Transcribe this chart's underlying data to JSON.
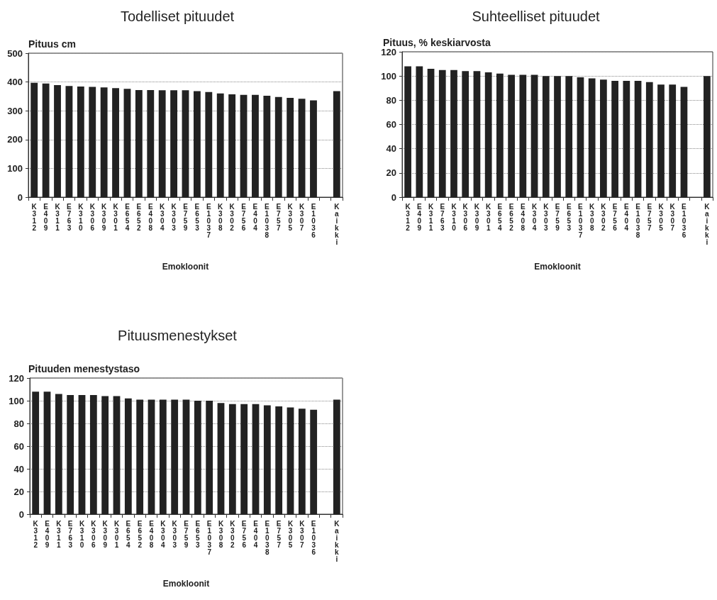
{
  "chart_data": [
    {
      "type": "bar",
      "title": "Todelliset pituudet",
      "ylabel": "Pituus cm",
      "xlabel": "Emokloonit",
      "categories": [
        "K312",
        "E409",
        "K311",
        "E763",
        "K310",
        "K306",
        "K309",
        "K301",
        "E654",
        "E652",
        "E408",
        "K304",
        "K303",
        "E759",
        "E653",
        "E1037",
        "K308",
        "K302",
        "E756",
        "E404",
        "E1038",
        "E757",
        "K305",
        "K307",
        "E1036",
        null,
        "Kaikki"
      ],
      "values": [
        397,
        395,
        389,
        386,
        384,
        383,
        381,
        379,
        376,
        372,
        372,
        371,
        371,
        371,
        368,
        365,
        360,
        357,
        355,
        355,
        352,
        348,
        345,
        342,
        336,
        null,
        368
      ],
      "color": "#222222",
      "ylim": [
        0,
        500
      ],
      "yticks": [
        0,
        100,
        200,
        300,
        400,
        500
      ],
      "grid": "y"
    },
    {
      "type": "bar",
      "title": "Suhteelliset pituudet",
      "ylabel": "Pituus, % keskiarvosta",
      "xlabel": "Emokloonit",
      "categories": [
        "K312",
        "E409",
        "K311",
        "E763",
        "K310",
        "K306",
        "K309",
        "K301",
        "E654",
        "E652",
        "E408",
        "K304",
        "K303",
        "E759",
        "E653",
        "E1037",
        "K308",
        "K302",
        "E756",
        "E404",
        "E1038",
        "E757",
        "K305",
        "K307",
        "E1036",
        null,
        "Kaikki"
      ],
      "values": [
        108,
        108,
        106,
        105,
        105,
        104,
        104,
        103,
        102,
        101,
        101,
        101,
        100,
        100,
        100,
        99,
        98,
        97,
        96,
        96,
        96,
        95,
        93,
        93,
        91,
        null,
        100
      ],
      "color": "#222222",
      "ylim": [
        0,
        120
      ],
      "yticks": [
        0,
        20,
        40,
        60,
        80,
        100,
        120
      ],
      "grid": "y"
    },
    {
      "type": "bar",
      "title": "Pituusmenestykset",
      "ylabel": "Pituuden menestystaso",
      "xlabel": "Emokloonit",
      "categories": [
        "K312",
        "E409",
        "K311",
        "E763",
        "K310",
        "K306",
        "K309",
        "K301",
        "E654",
        "E652",
        "E408",
        "K304",
        "K303",
        "E759",
        "E653",
        "E1037",
        "K308",
        "K302",
        "E756",
        "E404",
        "E1038",
        "E757",
        "K305",
        "K307",
        "E1036",
        null,
        "Kaikki"
      ],
      "values": [
        108,
        108,
        106,
        105,
        105,
        105,
        104,
        104,
        102,
        101,
        101,
        101,
        101,
        101,
        100,
        100,
        98,
        97,
        97,
        97,
        96,
        95,
        94,
        93,
        92,
        null,
        101
      ],
      "color": "#222222",
      "ylim": [
        0,
        120
      ],
      "yticks": [
        0,
        20,
        40,
        60,
        80,
        100,
        120
      ],
      "grid": "y"
    }
  ]
}
